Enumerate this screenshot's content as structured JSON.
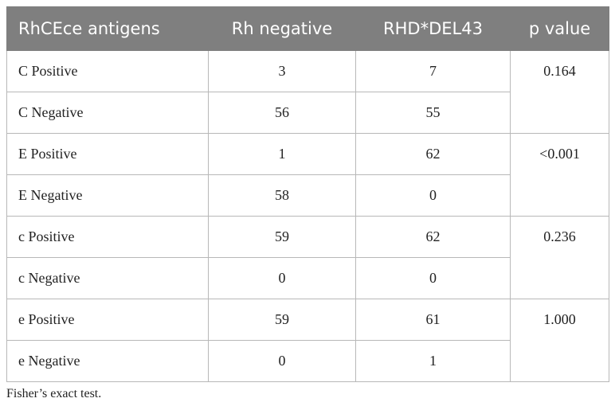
{
  "table": {
    "header": [
      "RhCEce antigens",
      "Rh negative",
      "RHD*DEL43",
      "p value"
    ],
    "rows": [
      [
        "C Positive",
        "3",
        "7"
      ],
      [
        "C Negative",
        "56",
        "55"
      ],
      [
        "E Positive",
        "1",
        "62"
      ],
      [
        "E Negative",
        "58",
        "0"
      ],
      [
        "c Positive",
        "59",
        "62"
      ],
      [
        "c Negative",
        "0",
        "0"
      ],
      [
        "e Positive",
        "59",
        "61"
      ],
      [
        "e Negative",
        "0",
        "1"
      ]
    ],
    "p_values": [
      "0.164",
      "<0.001",
      "0.236",
      "1.000"
    ]
  },
  "footnote": "Fisher’s exact test."
}
